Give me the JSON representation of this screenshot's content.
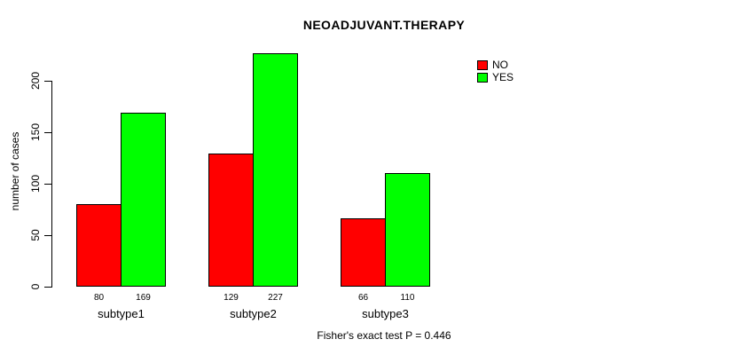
{
  "chart_data": {
    "type": "bar",
    "title": "NEOADJUVANT.THERAPY",
    "xlabel": "",
    "ylabel": "number of cases",
    "categories": [
      "subtype1",
      "subtype2",
      "subtype3"
    ],
    "series": [
      {
        "name": "NO",
        "color": "#ff0000",
        "values": [
          80,
          129,
          66
        ]
      },
      {
        "name": "YES",
        "color": "#00ff00",
        "values": [
          169,
          227,
          110
        ]
      }
    ],
    "bar_value_labels": [
      [
        "80",
        "169"
      ],
      [
        "129",
        "227"
      ],
      [
        "66",
        "110"
      ]
    ],
    "ylim": [
      0,
      227
    ],
    "yticks": [
      0,
      50,
      100,
      150,
      200
    ],
    "grid": false,
    "legend_position": "inside-top-right",
    "annotation": "Fisher's exact test P = 0.446"
  },
  "colors": {
    "axis": "#000000",
    "background": "#ffffff",
    "bar_border": "#000000"
  }
}
